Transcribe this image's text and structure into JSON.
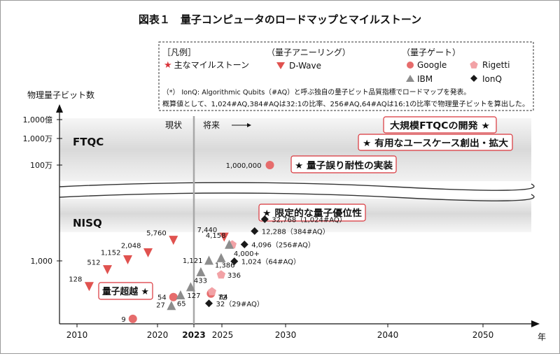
{
  "chart_data": {
    "type": "scatter",
    "title": "図表１　量子コンピュータのロードマップとマイルストーン",
    "ylabel": "物理量子ビット数",
    "xlabel": "年",
    "x_ticks": [
      "2010",
      "2020",
      "2023",
      "2025",
      "2030",
      "2040",
      "2050"
    ],
    "y_ticks_upper": [
      "1,000億",
      "1,000万",
      "100万"
    ],
    "y_ticks_lower": [
      "1,000"
    ],
    "region_labels": {
      "upper": "FTQC",
      "lower": "NISQ"
    },
    "now_label": "現状",
    "future_label": "将来",
    "legend": {
      "title": "［凡例］",
      "milestone_label": "★ 主なマイルストーン",
      "annealing_title": "（量子アニーリング）",
      "dwave_label": "D-Wave",
      "gate_title": "（量子ゲート）",
      "google_label": "Google",
      "rigetti_label": "Rigetti",
      "ibm_label": "IBM",
      "ionq_label": "IonQ",
      "note1": "（*） IonQ: Algorithmic Qubits（#AQ）と呼ぶ独自の量子ビット品質指標でロードマップを発表。",
      "note2": "概算値として、1,024#AQ,384#AQは32:1の比率、256#AQ,64#AQは16:1の比率で物理量子ビットを算出した。"
    },
    "milestones": [
      {
        "label": "大規模FTQCの開発 ★"
      },
      {
        "label": "★ 有用なユースケース創出・拡大"
      },
      {
        "label": "★ 量子誤り耐性の実装"
      },
      {
        "label": "★ 限定的な量子優位性"
      },
      {
        "label": "量子超越 ★"
      }
    ],
    "series": [
      {
        "name": "D-Wave",
        "color": "#e0524f",
        "marker": "triangle-down",
        "points": [
          {
            "x": 2011.2,
            "y": 128,
            "label": "128"
          },
          {
            "x": 2013.0,
            "y": 512,
            "label": "512"
          },
          {
            "x": 2015.0,
            "y": 1152,
            "label": "1,152"
          },
          {
            "x": 2017.0,
            "y": 2048,
            "label": "2,048"
          },
          {
            "x": 2019.5,
            "y": 5760,
            "label": "5,760"
          },
          {
            "x": 2024.5,
            "y": 7440,
            "label": "7,440"
          }
        ]
      },
      {
        "name": "Google",
        "color": "#e66c6c",
        "marker": "circle",
        "points": [
          {
            "x": 2015.5,
            "y": 9,
            "label": "9"
          },
          {
            "x": 2019.5,
            "y": 54,
            "label": "54"
          },
          {
            "x": 2023.2,
            "y": 72,
            "label": "72"
          },
          {
            "x": 2029.0,
            "y": 1000000,
            "label": "1,000,000"
          }
        ]
      },
      {
        "name": "Rigetti",
        "color": "#f2a2a6",
        "marker": "pentagon",
        "points": [
          {
            "x": 2023.3,
            "y": 84,
            "label": "84"
          },
          {
            "x": 2024.2,
            "y": 336,
            "label": "336"
          },
          {
            "x": 2025.3,
            "y": 4000,
            "label": "4,000+"
          }
        ]
      },
      {
        "name": "IBM",
        "color": "#8d8d8d",
        "marker": "triangle-up",
        "points": [
          {
            "x": 2019.3,
            "y": 27,
            "label": "27"
          },
          {
            "x": 2020.2,
            "y": 65,
            "label": "65"
          },
          {
            "x": 2021.2,
            "y": 127,
            "label": "127"
          },
          {
            "x": 2022.2,
            "y": 433,
            "label": "433"
          },
          {
            "x": 2023.0,
            "y": 1121,
            "label": "1,121"
          },
          {
            "x": 2024.2,
            "y": 1386,
            "label": "1,386"
          },
          {
            "x": 2025.0,
            "y": 4158,
            "label": "4,158"
          }
        ]
      },
      {
        "name": "IonQ",
        "color": "#1a1a1a",
        "marker": "diamond",
        "points": [
          {
            "x": 2023.0,
            "y": 32,
            "label": "32（29#AQ）"
          },
          {
            "x": 2025.5,
            "y": 1024,
            "label": "1,024（64#AQ）"
          },
          {
            "x": 2026.5,
            "y": 4096,
            "label": "4,096（256#AQ）"
          },
          {
            "x": 2027.5,
            "y": 12288,
            "label": "12,288（384#AQ）"
          },
          {
            "x": 2028.5,
            "y": 32768,
            "label": "32,768（1,024#AQ）"
          }
        ]
      }
    ]
  }
}
